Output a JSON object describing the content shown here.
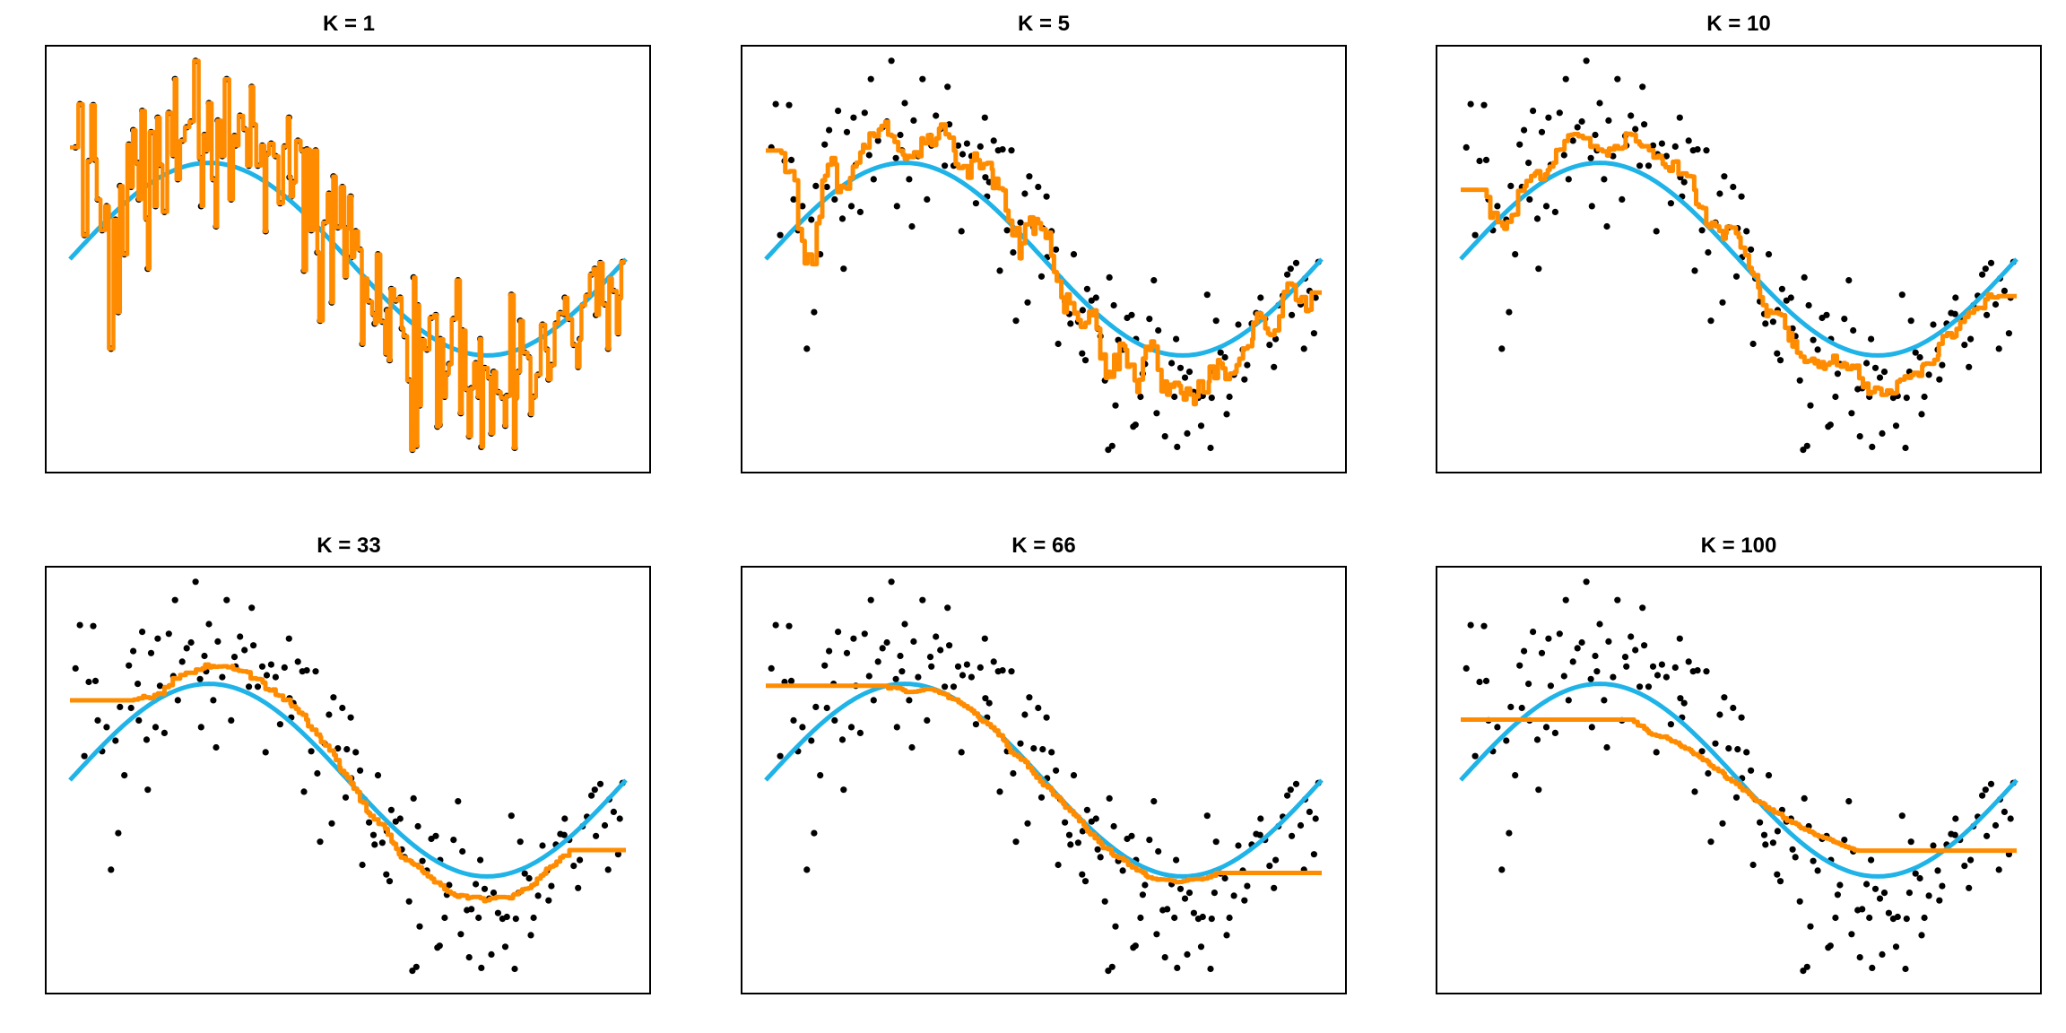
{
  "colors": {
    "true_curve": "#1fb3e8",
    "knn_fit": "#ff8c00",
    "points": "#000000",
    "frame": "#000000",
    "background": "#ffffff"
  },
  "chart_data": [
    {
      "type": "scatter",
      "title": "K = 1",
      "k": 1,
      "xlim": [
        0,
        1
      ],
      "ylim": [
        -2.15,
        2.15
      ],
      "grid": false,
      "axes_drawn": false
    },
    {
      "type": "scatter",
      "title": "K = 5",
      "k": 5,
      "xlim": [
        0,
        1
      ],
      "ylim": [
        -2.15,
        2.15
      ],
      "grid": false,
      "axes_drawn": false
    },
    {
      "type": "scatter",
      "title": "K = 10",
      "k": 10,
      "xlim": [
        0,
        1
      ],
      "ylim": [
        -2.15,
        2.15
      ],
      "grid": false,
      "axes_drawn": false
    },
    {
      "type": "scatter",
      "title": "K = 33",
      "k": 33,
      "xlim": [
        0,
        1
      ],
      "ylim": [
        -2.15,
        2.15
      ],
      "grid": false,
      "axes_drawn": false
    },
    {
      "type": "scatter",
      "title": "K = 66",
      "k": 66,
      "xlim": [
        0,
        1
      ],
      "ylim": [
        -2.15,
        2.15
      ],
      "grid": false,
      "axes_drawn": false
    },
    {
      "type": "scatter",
      "title": "K = 100",
      "k": 100,
      "xlim": [
        0,
        1
      ],
      "ylim": [
        -2.15,
        2.15
      ],
      "grid": false,
      "axes_drawn": false
    }
  ],
  "shared_series": {
    "true_function": "sin(2*pi*x)",
    "points": [
      [
        0.01,
        1.16
      ],
      [
        0.018,
        1.61
      ],
      [
        0.026,
        0.25
      ],
      [
        0.034,
        1.02
      ],
      [
        0.042,
        1.6
      ],
      [
        0.05,
        0.62
      ],
      [
        0.058,
        0.3
      ],
      [
        0.066,
        0.55
      ],
      [
        0.074,
        -0.93
      ],
      [
        0.082,
        0.41
      ],
      [
        0.09,
        0.76
      ],
      [
        0.098,
        0.05
      ],
      [
        0.106,
        1.19
      ],
      [
        0.114,
        1.34
      ],
      [
        0.122,
        1.0
      ],
      [
        0.13,
        1.54
      ],
      [
        0.138,
        0.42
      ],
      [
        0.146,
        1.32
      ],
      [
        0.154,
        0.55
      ],
      [
        0.162,
        0.98
      ],
      [
        0.17,
        0.49
      ],
      [
        0.178,
        1.52
      ],
      [
        0.186,
        1.08
      ],
      [
        0.194,
        0.83
      ],
      [
        0.202,
        1.23
      ],
      [
        0.21,
        1.37
      ],
      [
        0.218,
        1.43
      ],
      [
        0.226,
        2.06
      ],
      [
        0.234,
        1.05
      ],
      [
        0.242,
        1.29
      ],
      [
        0.25,
        1.62
      ],
      [
        0.258,
        0.83
      ],
      [
        0.266,
        1.44
      ],
      [
        0.274,
        1.07
      ],
      [
        0.282,
        1.87
      ],
      [
        0.29,
        0.62
      ],
      [
        0.298,
        1.18
      ],
      [
        0.306,
        1.49
      ],
      [
        0.314,
        1.35
      ],
      [
        0.322,
        0.97
      ],
      [
        0.33,
        1.4
      ],
      [
        0.338,
        0.97
      ],
      [
        0.346,
        1.18
      ],
      [
        0.354,
        1.09
      ],
      [
        0.362,
        1.2
      ],
      [
        0.37,
        1.07
      ],
      [
        0.378,
        0.58
      ],
      [
        0.386,
        1.17
      ],
      [
        0.394,
        1.47
      ],
      [
        0.402,
        0.8
      ],
      [
        0.41,
        1.23
      ],
      [
        0.418,
        1.13
      ],
      [
        0.426,
        1.14
      ],
      [
        0.434,
        0.3
      ],
      [
        0.442,
        1.13
      ],
      [
        0.45,
        -0.64
      ],
      [
        0.458,
        0.38
      ],
      [
        0.466,
        0.68
      ],
      [
        0.474,
        0.86
      ],
      [
        0.482,
        0.33
      ],
      [
        0.49,
        0.75
      ],
      [
        0.498,
        0.32
      ],
      [
        0.506,
        0.02
      ],
      [
        0.514,
        0.29
      ],
      [
        0.522,
        0.1
      ],
      [
        0.53,
        -0.2
      ],
      [
        0.538,
        -0.44
      ],
      [
        0.546,
        -0.57
      ],
      [
        0.554,
        0.05
      ],
      [
        0.562,
        -0.65
      ],
      [
        0.57,
        -0.53
      ],
      [
        0.578,
        -0.31
      ],
      [
        0.586,
        -0.43
      ],
      [
        0.594,
        -0.4
      ],
      [
        0.602,
        -0.8
      ],
      [
        0.61,
        -1.26
      ],
      [
        0.618,
        -0.19
      ],
      [
        0.626,
        -0.48
      ],
      [
        0.634,
        -0.84
      ],
      [
        0.642,
        -0.94
      ],
      [
        0.65,
        -0.61
      ],
      [
        0.658,
        -0.58
      ],
      [
        0.666,
        -0.83
      ],
      [
        0.674,
        -1.43
      ],
      [
        0.682,
        -1.09
      ],
      [
        0.69,
        -0.62
      ],
      [
        0.698,
        -0.22
      ],
      [
        0.706,
        -0.74
      ],
      [
        0.714,
        -1.35
      ],
      [
        0.722,
        -1.34
      ],
      [
        0.73,
        -1.08
      ],
      [
        0.738,
        -0.83
      ],
      [
        0.746,
        -1.13
      ],
      [
        0.754,
        -1.23
      ],
      [
        0.762,
        -1.17
      ],
      [
        0.77,
        -1.38
      ],
      [
        0.778,
        -1.44
      ],
      [
        0.786,
        -1.42
      ],
      [
        0.794,
        -0.37
      ],
      [
        0.802,
        -1.44
      ],
      [
        0.81,
        -0.64
      ],
      [
        0.818,
        -0.97
      ],
      [
        0.826,
        -1.02
      ],
      [
        0.834,
        -1.43
      ],
      [
        0.842,
        -1.2
      ],
      [
        0.85,
        -0.68
      ],
      [
        0.858,
        -0.94
      ],
      [
        0.866,
        -1.1
      ],
      [
        0.874,
        -0.67
      ],
      [
        0.882,
        -0.56
      ],
      [
        0.89,
        -0.4
      ],
      [
        0.898,
        -0.62
      ],
      [
        0.906,
        -0.89
      ],
      [
        0.914,
        -1.12
      ],
      [
        0.922,
        -0.48
      ],
      [
        0.93,
        -0.38
      ],
      [
        0.938,
        -0.16
      ],
      [
        0.946,
        -0.58
      ],
      [
        0.954,
        -0.04
      ],
      [
        0.962,
        -0.47
      ],
      [
        0.97,
        -0.2
      ],
      [
        0.978,
        -0.33
      ],
      [
        0.986,
        -0.77
      ],
      [
        0.994,
        -0.03
      ],
      [
        0.046,
        1.03
      ],
      [
        0.087,
        -0.55
      ],
      [
        0.124,
        0.62
      ],
      [
        0.158,
        1.47
      ],
      [
        0.189,
        1.87
      ],
      [
        0.236,
        0.55
      ],
      [
        0.263,
        0.34
      ],
      [
        0.296,
        1.28
      ],
      [
        0.327,
        1.79
      ],
      [
        0.352,
        0.29
      ],
      [
        0.398,
        0.65
      ],
      [
        0.421,
        -0.12
      ],
      [
        0.445,
        0.07
      ],
      [
        0.471,
        -0.45
      ],
      [
        0.496,
        -0.18
      ],
      [
        0.526,
        -0.88
      ],
      [
        0.548,
        -0.67
      ],
      [
        0.569,
        -0.98
      ],
      [
        0.597,
        -0.72
      ],
      [
        0.629,
        -1.52
      ],
      [
        0.661,
        -1.74
      ],
      [
        0.678,
        -1.19
      ],
      [
        0.703,
        -1.6
      ],
      [
        0.735,
        -1.43
      ],
      [
        0.758,
        -1.81
      ],
      [
        0.783,
        -1.73
      ],
      [
        0.807,
        -1.17
      ],
      [
        0.829,
        -1.61
      ],
      [
        0.861,
        -1.25
      ],
      [
        0.889,
        -0.57
      ],
      [
        0.917,
        -0.83
      ],
      [
        0.944,
        -0.1
      ],
      [
        0.968,
        -0.93
      ],
      [
        0.989,
        -0.4
      ],
      [
        0.616,
        -1.98
      ],
      [
        0.623,
        -1.94
      ],
      [
        0.8,
        -1.96
      ],
      [
        0.74,
        -1.95
      ],
      [
        0.665,
        -1.72
      ],
      [
        0.718,
        -1.84
      ],
      [
        0.14,
        -0.1
      ],
      [
        0.11,
        0.75
      ],
      [
        0.395,
        0.85
      ],
      [
        0.505,
        0.65
      ],
      [
        0.245,
        1.13
      ],
      [
        0.575,
        -1.05
      ]
    ]
  }
}
